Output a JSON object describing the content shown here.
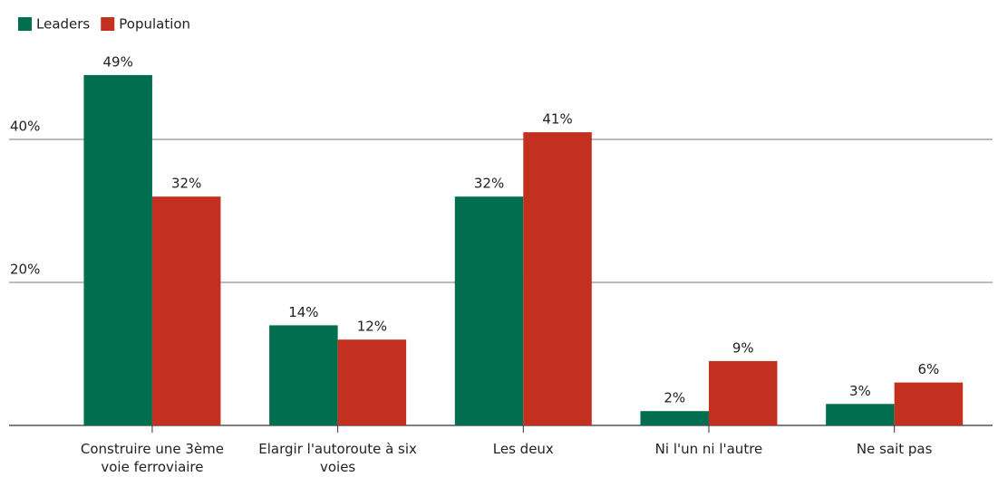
{
  "chart_data": {
    "type": "bar",
    "categories": [
      "Construire une 3ème voie ferroviaire",
      "Elargir l'autoroute à six voies",
      "Les deux",
      "Ni l'un ni l'autre",
      "Ne sait pas"
    ],
    "series": [
      {
        "name": "Leaders",
        "color": "#006e4f",
        "values": [
          49,
          14,
          32,
          2,
          3
        ],
        "value_labels": [
          "49%",
          "14%",
          "32%",
          "2%",
          "3%"
        ]
      },
      {
        "name": "Population",
        "color": "#c4301f",
        "values": [
          32,
          12,
          41,
          9,
          6
        ],
        "value_labels": [
          "32%",
          "12%",
          "41%",
          "9%",
          "6%"
        ]
      }
    ],
    "ylim": [
      0,
      55
    ],
    "yticks": [
      {
        "value": 20,
        "label": "20%"
      },
      {
        "value": 40,
        "label": "40%"
      }
    ],
    "grid": true,
    "legend": "top-left"
  }
}
